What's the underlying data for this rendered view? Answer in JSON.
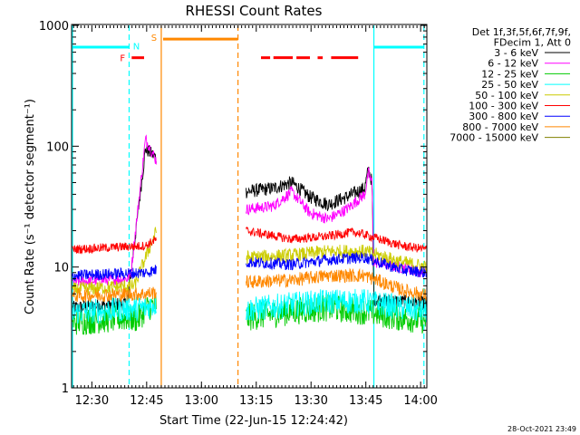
{
  "chart_data": {
    "type": "line",
    "title": "RHESSI Count Rates",
    "xlabel": "Start Time (22-Jun-15 12:24:42)",
    "ylabel": "Count Rate (s⁻¹ detector segment⁻¹)",
    "x_unit": "minutes after 12:24:42",
    "xlim": [
      0,
      97
    ],
    "ylim": [
      1,
      1000
    ],
    "yscale": "log",
    "xticks": [
      {
        "value": 5.3,
        "label": "12:30"
      },
      {
        "value": 20.3,
        "label": "12:45"
      },
      {
        "value": 35.3,
        "label": "13:00"
      },
      {
        "value": 50.3,
        "label": "13:15"
      },
      {
        "value": 65.3,
        "label": "13:30"
      },
      {
        "value": 80.3,
        "label": "13:45"
      },
      {
        "value": 95.3,
        "label": "14:00"
      }
    ],
    "yticks": [
      {
        "value": 1,
        "label": "1"
      },
      {
        "value": 10,
        "label": "10"
      },
      {
        "value": 100,
        "label": "100"
      },
      {
        "value": 1000,
        "label": "1000"
      }
    ],
    "legend_header": [
      "Det 1f,3f,5f,6f,7f,9f,",
      "FDecim 1, Att 0"
    ],
    "legend_placement": "right",
    "data_segments": [
      [
        0,
        23
      ],
      [
        47.5,
        97
      ]
    ],
    "series": [
      {
        "name": "3 - 6 keV",
        "color": "#000000",
        "noise": 0.06,
        "points": [
          [
            0,
            4.6
          ],
          [
            15,
            5
          ],
          [
            20,
            95
          ],
          [
            23,
            80
          ],
          [
            47.5,
            42
          ],
          [
            55,
            45
          ],
          [
            60,
            50
          ],
          [
            65,
            38
          ],
          [
            70,
            33
          ],
          [
            75,
            38
          ],
          [
            80,
            45
          ],
          [
            81,
            65
          ],
          [
            82,
            50
          ],
          [
            82.5,
            5.4
          ],
          [
            97,
            5
          ]
        ]
      },
      {
        "name": "6 - 12 keV",
        "color": "#ff00ff",
        "noise": 0.05,
        "points": [
          [
            0,
            7.5
          ],
          [
            15,
            8
          ],
          [
            16,
            9
          ],
          [
            20,
            115
          ],
          [
            23,
            75
          ],
          [
            47.5,
            30
          ],
          [
            55,
            32
          ],
          [
            60,
            42
          ],
          [
            65,
            28
          ],
          [
            70,
            25
          ],
          [
            75,
            30
          ],
          [
            80,
            40
          ],
          [
            81,
            60
          ],
          [
            82,
            50
          ],
          [
            82.5,
            11
          ],
          [
            97,
            9
          ]
        ]
      },
      {
        "name": "12 - 25 keV",
        "color": "#00cc00",
        "noise": 0.12,
        "points": [
          [
            0,
            3.5
          ],
          [
            15,
            3.8
          ],
          [
            18,
            3.7
          ],
          [
            20,
            4.5
          ],
          [
            23,
            5
          ],
          [
            47.5,
            3.8
          ],
          [
            60,
            4.3
          ],
          [
            70,
            4.6
          ],
          [
            80,
            4.3
          ],
          [
            90,
            3.8
          ],
          [
            97,
            3.6
          ]
        ]
      },
      {
        "name": "25 - 50 keV",
        "color": "#00ffff",
        "noise": 0.11,
        "points": [
          [
            0,
            4.2
          ],
          [
            20,
            4.6
          ],
          [
            23,
            5
          ],
          [
            47.5,
            4.4
          ],
          [
            60,
            4.9
          ],
          [
            70,
            5.2
          ],
          [
            80,
            5.2
          ],
          [
            90,
            4.6
          ],
          [
            97,
            4.3
          ]
        ]
      },
      {
        "name": "50 - 100 keV",
        "color": "#cccc00",
        "noise": 0.06,
        "points": [
          [
            0,
            6.5
          ],
          [
            17,
            7
          ],
          [
            20,
            12
          ],
          [
            23,
            20
          ],
          [
            47.5,
            12
          ],
          [
            60,
            12.5
          ],
          [
            70,
            13.5
          ],
          [
            80,
            13.5
          ],
          [
            90,
            11
          ],
          [
            97,
            10
          ]
        ]
      },
      {
        "name": "100 - 300 keV",
        "color": "#ff0000",
        "noise": 0.04,
        "points": [
          [
            0,
            14
          ],
          [
            20,
            15
          ],
          [
            23,
            17
          ],
          [
            47.5,
            20
          ],
          [
            60,
            17
          ],
          [
            70,
            18
          ],
          [
            77,
            19.5
          ],
          [
            80,
            18.5
          ],
          [
            90,
            15
          ],
          [
            97,
            14
          ]
        ]
      },
      {
        "name": "300 - 800 keV",
        "color": "#0000ff",
        "noise": 0.05,
        "points": [
          [
            0,
            8.5
          ],
          [
            20,
            9
          ],
          [
            23,
            9.5
          ],
          [
            47.5,
            11
          ],
          [
            60,
            10.5
          ],
          [
            70,
            11.5
          ],
          [
            80,
            12
          ],
          [
            90,
            9.5
          ],
          [
            97,
            9
          ]
        ]
      },
      {
        "name": "800 - 7000 keV",
        "color": "#ff8800",
        "noise": 0.06,
        "points": [
          [
            0,
            5.8
          ],
          [
            20,
            6
          ],
          [
            23,
            6.2
          ],
          [
            47.5,
            7.5
          ],
          [
            60,
            7.8
          ],
          [
            70,
            8.5
          ],
          [
            80,
            8.5
          ],
          [
            90,
            6.5
          ],
          [
            97,
            5.8
          ]
        ]
      },
      {
        "name": "7000 - 15000 keV",
        "color": "#808000",
        "noise": 0.05,
        "points": []
      }
    ],
    "annotations": {
      "vertical_lines": [
        {
          "x": 0,
          "color": "#00ffff",
          "style": "solid"
        },
        {
          "x": 15.5,
          "color": "#00ffff",
          "style": "dashed"
        },
        {
          "x": 24.3,
          "color": "#ff8800",
          "style": "solid"
        },
        {
          "x": 45.3,
          "color": "#ff8800",
          "style": "dashed"
        },
        {
          "x": 82.5,
          "color": "#00ffff",
          "style": "solid"
        },
        {
          "x": 96.2,
          "color": "#00ffff",
          "style": "dashed"
        }
      ],
      "flag_bars": [
        {
          "label": "",
          "color": "#00ffff",
          "y": 660,
          "segments": [
            [
              0,
              15.5
            ],
            [
              82.5,
              96.2
            ]
          ]
        },
        {
          "label": "N",
          "color": "#00ffff",
          "y": 660,
          "label_x": 17.5,
          "label_y": 680,
          "segments": []
        },
        {
          "label": "S",
          "color": "#ff8800",
          "y": 770,
          "label_x": 22.3,
          "label_y": 800,
          "segments": [
            [
              24.8,
              45.3
            ]
          ]
        },
        {
          "label": "F",
          "color": "#ff0000",
          "y": 540,
          "label_x": 13.7,
          "label_y": 540,
          "segments": [
            [
              16.2,
              19.6
            ],
            [
              51.6,
              54.1
            ],
            [
              55,
              60.3
            ],
            [
              61.3,
              65
            ],
            [
              67.1,
              68.5
            ],
            [
              70.8,
              78.2
            ]
          ]
        }
      ]
    }
  },
  "footer": {
    "timestamp": "28-Oct-2021 23:49"
  }
}
